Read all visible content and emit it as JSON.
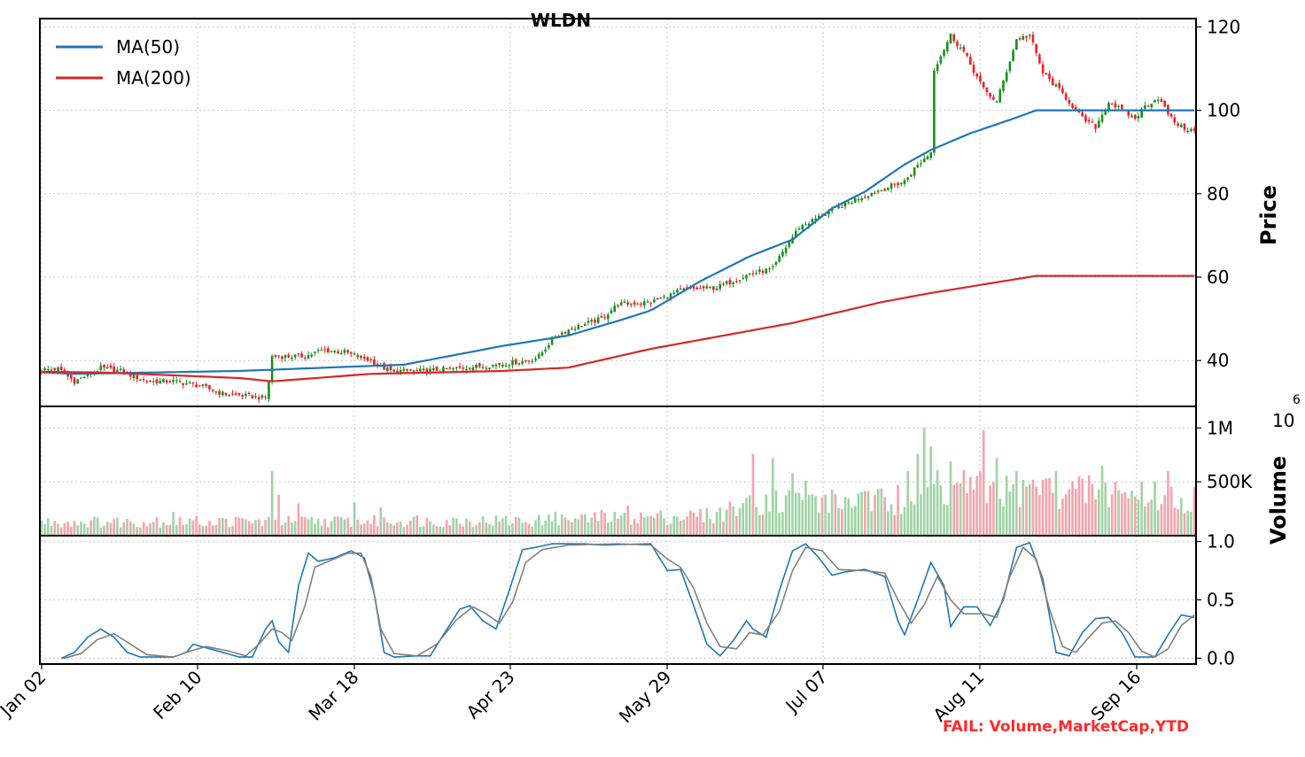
{
  "chart_data": {
    "type": "candlestick",
    "title": "WLDN",
    "colors": {
      "up": "#1a8f1a",
      "down": "#f01e28",
      "ma50": "#1f77b4",
      "ma200": "#d62728",
      "vol_up": "#9fd3a4",
      "vol_down": "#f6a3ad",
      "k_line": "#1f77b4",
      "d_line": "#808080",
      "grid": "#c8c8c8",
      "fail": "#ff2a2a"
    },
    "x_ticks": [
      "Jan 02",
      "Feb 10",
      "Mar 18",
      "Apr 23",
      "May 29",
      "Jul 07",
      "Aug 11",
      "Sep 16"
    ],
    "price_panel": {
      "ylabel": "Price",
      "yticks": [
        40,
        60,
        80,
        100,
        120
      ],
      "ylim": [
        29,
        122
      ],
      "grid": true,
      "legend_position": "top-left",
      "series": [
        {
          "name": "MA(50)",
          "anchors": [
            [
              0,
              37.2
            ],
            [
              10,
              36.8
            ],
            [
              60,
              37.5
            ],
            [
              110,
              39
            ],
            [
              140,
              43.5
            ],
            [
              160,
              46
            ],
            [
              175,
              49.5
            ],
            [
              185,
              52
            ],
            [
              200,
              59
            ],
            [
              215,
              65
            ],
            [
              228,
              69
            ],
            [
              240,
              76.5
            ],
            [
              250,
              80.5
            ],
            [
              262,
              87
            ],
            [
              270,
              90.5
            ],
            [
              282,
              94.5
            ],
            [
              295,
              98
            ],
            [
              302,
              100
            ]
          ]
        },
        {
          "name": "MA(200)",
          "anchors": [
            [
              0,
              37.3
            ],
            [
              20,
              37.1
            ],
            [
              60,
              35.8
            ],
            [
              70,
              35
            ],
            [
              100,
              36.8
            ],
            [
              140,
              37.5
            ],
            [
              160,
              38.3
            ],
            [
              185,
              42.8
            ],
            [
              228,
              49
            ],
            [
              255,
              54
            ],
            [
              270,
              56.2
            ],
            [
              302,
              60.3
            ]
          ]
        }
      ],
      "close_anchors": [
        [
          0,
          37.8
        ],
        [
          5,
          38
        ],
        [
          10,
          35
        ],
        [
          18,
          38.2
        ],
        [
          24,
          37.5
        ],
        [
          32,
          35
        ],
        [
          40,
          35
        ],
        [
          48,
          34
        ],
        [
          55,
          32
        ],
        [
          62,
          31.5
        ],
        [
          68,
          31
        ],
        [
          69,
          35
        ],
        [
          70,
          41
        ],
        [
          80,
          41
        ],
        [
          85,
          42.5
        ],
        [
          92,
          42
        ],
        [
          100,
          40
        ],
        [
          103,
          38.5
        ],
        [
          106,
          37.5
        ],
        [
          115,
          37.5
        ],
        [
          125,
          38
        ],
        [
          138,
          39
        ],
        [
          148,
          40
        ],
        [
          151,
          41
        ],
        [
          156,
          46
        ],
        [
          162,
          48
        ],
        [
          170,
          50
        ],
        [
          175,
          53.5
        ],
        [
          185,
          54
        ],
        [
          195,
          57
        ],
        [
          205,
          57.5
        ],
        [
          215,
          60.8
        ],
        [
          222,
          62
        ],
        [
          225,
          66
        ],
        [
          230,
          72
        ],
        [
          240,
          76
        ],
        [
          248,
          79
        ],
        [
          255,
          81
        ],
        [
          262,
          83
        ],
        [
          265,
          86
        ],
        [
          270,
          90
        ],
        [
          271,
          110
        ],
        [
          276,
          118
        ],
        [
          280,
          114
        ],
        [
          286,
          105
        ],
        [
          290,
          102
        ],
        [
          296,
          117
        ],
        [
          300,
          118
        ],
        [
          304,
          109
        ],
        [
          310,
          104
        ],
        [
          316,
          98
        ],
        [
          320,
          96
        ],
        [
          324,
          102
        ],
        [
          328,
          100
        ],
        [
          332,
          98
        ],
        [
          335,
          101
        ],
        [
          339,
          103
        ],
        [
          343,
          98
        ],
        [
          346,
          96
        ],
        [
          350,
          95
        ]
      ]
    },
    "volume_panel": {
      "ylabel": "Volume",
      "exponent": "10^6",
      "yticks": [
        500000,
        1000000
      ],
      "ytick_labels": [
        "500K",
        "1M"
      ],
      "ylim": [
        0,
        1200000
      ],
      "grid": true,
      "base_volume": 120000,
      "spikes": [
        [
          35,
          170000
        ],
        [
          40,
          220000
        ],
        [
          45,
          160000
        ],
        [
          70,
          600000
        ],
        [
          72,
          380000
        ],
        [
          78,
          300000
        ],
        [
          95,
          310000
        ],
        [
          103,
          260000
        ],
        [
          114,
          190000
        ],
        [
          156,
          220000
        ],
        [
          170,
          240000
        ],
        [
          178,
          280000
        ],
        [
          214,
          350000
        ],
        [
          216,
          760000
        ],
        [
          222,
          720000
        ],
        [
          228,
          580000
        ],
        [
          232,
          510000
        ],
        [
          238,
          380000
        ],
        [
          248,
          390000
        ],
        [
          255,
          440000
        ],
        [
          260,
          470000
        ],
        [
          263,
          600000
        ],
        [
          266,
          760000
        ],
        [
          268,
          1000000
        ],
        [
          270,
          830000
        ],
        [
          272,
          610000
        ],
        [
          276,
          690000
        ],
        [
          280,
          610000
        ],
        [
          286,
          980000
        ],
        [
          290,
          720000
        ],
        [
          296,
          600000
        ],
        [
          300,
          480000
        ],
        [
          304,
          520000
        ],
        [
          308,
          600000
        ],
        [
          312,
          430000
        ],
        [
          318,
          560000
        ],
        [
          322,
          650000
        ],
        [
          326,
          500000
        ],
        [
          334,
          500000
        ],
        [
          342,
          600000
        ],
        [
          348,
          230000
        ]
      ]
    },
    "oscillator_panel": {
      "yticks": [
        0.0,
        0.5,
        1.0
      ],
      "ytick_labels": [
        "0.0",
        "0.5",
        "1.0"
      ],
      "ylim": [
        -0.05,
        1.05
      ],
      "grid": true,
      "series": [
        {
          "name": "",
          "anchors": [
            [
              0,
              0
            ],
            [
              6,
              0
            ],
            [
              10,
              0.05
            ],
            [
              14,
              0.18
            ],
            [
              18,
              0.25
            ],
            [
              22,
              0.18
            ],
            [
              26,
              0.05
            ],
            [
              30,
              0.01
            ],
            [
              40,
              0.01
            ],
            [
              44,
              0.05
            ],
            [
              46,
              0.12
            ],
            [
              55,
              0.05
            ],
            [
              60,
              0.01
            ],
            [
              64,
              0.01
            ],
            [
              68,
              0.25
            ],
            [
              70,
              0.32
            ],
            [
              72,
              0.14
            ],
            [
              75,
              0.05
            ],
            [
              78,
              0.62
            ],
            [
              81,
              0.9
            ],
            [
              84,
              0.83
            ],
            [
              89,
              0.86
            ],
            [
              94,
              0.92
            ],
            [
              98,
              0.86
            ],
            [
              101,
              0.55
            ],
            [
              104,
              0.05
            ],
            [
              107,
              0.01
            ],
            [
              114,
              0.02
            ],
            [
              118,
              0.02
            ],
            [
              122,
              0.2
            ],
            [
              127,
              0.42
            ],
            [
              130,
              0.45
            ],
            [
              134,
              0.32
            ],
            [
              138,
              0.25
            ],
            [
              142,
              0.58
            ],
            [
              146,
              0.93
            ],
            [
              150,
              0.95
            ],
            [
              155,
              0.98
            ],
            [
              165,
              0.98
            ],
            [
              170,
              0.97
            ],
            [
              185,
              0.98
            ],
            [
              190,
              0.75
            ],
            [
              194,
              0.76
            ],
            [
              198,
              0.45
            ],
            [
              202,
              0.12
            ],
            [
              206,
              0.02
            ],
            [
              210,
              0.15
            ],
            [
              214,
              0.32
            ],
            [
              216,
              0.25
            ],
            [
              220,
              0.18
            ],
            [
              224,
              0.58
            ],
            [
              228,
              0.92
            ],
            [
              232,
              0.98
            ],
            [
              236,
              0.86
            ],
            [
              240,
              0.71
            ],
            [
              244,
              0.74
            ],
            [
              250,
              0.76
            ],
            [
              256,
              0.7
            ],
            [
              260,
              0.32
            ],
            [
              262,
              0.2
            ],
            [
              266,
              0.5
            ],
            [
              270,
              0.82
            ],
            [
              274,
              0.62
            ],
            [
              276,
              0.27
            ],
            [
              280,
              0.44
            ],
            [
              284,
              0.44
            ],
            [
              288,
              0.28
            ],
            [
              292,
              0.5
            ],
            [
              296,
              0.95
            ],
            [
              300,
              0.99
            ],
            [
              304,
              0.68
            ],
            [
              308,
              0.05
            ],
            [
              312,
              0.02
            ],
            [
              316,
              0.22
            ],
            [
              320,
              0.34
            ],
            [
              324,
              0.35
            ],
            [
              328,
              0.22
            ],
            [
              332,
              0.01
            ],
            [
              338,
              0.01
            ],
            [
              342,
              0.2
            ],
            [
              346,
              0.37
            ],
            [
              350,
              0.35
            ]
          ]
        },
        {
          "name": "",
          "anchors": [
            [
              0,
              0
            ],
            [
              7,
              0
            ],
            [
              12,
              0.04
            ],
            [
              17,
              0.16
            ],
            [
              22,
              0.21
            ],
            [
              27,
              0.12
            ],
            [
              32,
              0.03
            ],
            [
              40,
              0.01
            ],
            [
              45,
              0.06
            ],
            [
              50,
              0.1
            ],
            [
              57,
              0.06
            ],
            [
              62,
              0.02
            ],
            [
              66,
              0.12
            ],
            [
              70,
              0.25
            ],
            [
              73,
              0.22
            ],
            [
              76,
              0.15
            ],
            [
              80,
              0.45
            ],
            [
              83,
              0.78
            ],
            [
              88,
              0.84
            ],
            [
              93,
              0.9
            ],
            [
              97,
              0.9
            ],
            [
              100,
              0.7
            ],
            [
              103,
              0.25
            ],
            [
              107,
              0.04
            ],
            [
              114,
              0.02
            ],
            [
              120,
              0.12
            ],
            [
              126,
              0.33
            ],
            [
              131,
              0.44
            ],
            [
              135,
              0.38
            ],
            [
              139,
              0.3
            ],
            [
              143,
              0.48
            ],
            [
              147,
              0.82
            ],
            [
              152,
              0.93
            ],
            [
              160,
              0.97
            ],
            [
              175,
              0.98
            ],
            [
              185,
              0.97
            ],
            [
              190,
              0.85
            ],
            [
              194,
              0.78
            ],
            [
              198,
              0.6
            ],
            [
              202,
              0.3
            ],
            [
              206,
              0.1
            ],
            [
              211,
              0.08
            ],
            [
              215,
              0.22
            ],
            [
              219,
              0.2
            ],
            [
              224,
              0.4
            ],
            [
              228,
              0.75
            ],
            [
              232,
              0.95
            ],
            [
              237,
              0.92
            ],
            [
              242,
              0.76
            ],
            [
              250,
              0.75
            ],
            [
              256,
              0.73
            ],
            [
              260,
              0.5
            ],
            [
              264,
              0.3
            ],
            [
              268,
              0.46
            ],
            [
              272,
              0.7
            ],
            [
              276,
              0.5
            ],
            [
              280,
              0.38
            ],
            [
              286,
              0.38
            ],
            [
              290,
              0.35
            ],
            [
              294,
              0.7
            ],
            [
              298,
              0.95
            ],
            [
              302,
              0.85
            ],
            [
              306,
              0.42
            ],
            [
              310,
              0.1
            ],
            [
              314,
              0.05
            ],
            [
              318,
              0.18
            ],
            [
              322,
              0.3
            ],
            [
              326,
              0.32
            ],
            [
              330,
              0.22
            ],
            [
              334,
              0.06
            ],
            [
              338,
              0.01
            ],
            [
              342,
              0.08
            ],
            [
              346,
              0.28
            ],
            [
              350,
              0.37
            ]
          ]
        }
      ]
    },
    "status_text": "FAIL: Volume,MarketCap,YTD"
  }
}
